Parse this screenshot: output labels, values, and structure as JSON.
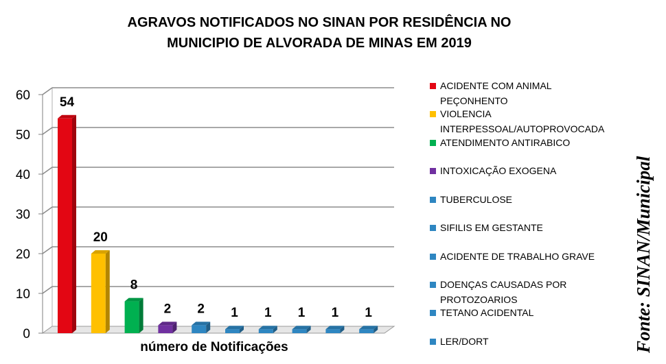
{
  "title_line1": "AGRAVOS NOTIFICADOS NO SINAN POR  RESIDÊNCIA  NO",
  "title_line2": "MUNICIPIO DE ALVORADA DE MINAS EM 2019",
  "source": "Fonte: SINAN/Municipal",
  "chart_data": {
    "type": "bar",
    "title": "AGRAVOS NOTIFICADOS NO SINAN POR RESIDÊNCIA NO MUNICIPIO DE ALVORADA DE MINAS EM 2019",
    "xlabel": "número  de Notificações",
    "ylabel": "",
    "ylim": [
      0,
      60
    ],
    "yticks": [
      0,
      10,
      20,
      30,
      40,
      50,
      60
    ],
    "grid": true,
    "legend_position": "right",
    "series": [
      {
        "name": "ACIDENTE COM ANIMAL PEÇONHENTO",
        "value": 54,
        "label": "54",
        "color": "#e30613"
      },
      {
        "name": "VIOLENCIA INTERPESSOAL/AUTOPROVOCADA",
        "value": 20,
        "label": "20",
        "color": "#ffc000"
      },
      {
        "name": "ATENDIMENTO ANTIRABICO",
        "value": 8,
        "label": "8",
        "color": "#00b050"
      },
      {
        "name": "INTOXICAÇÃO EXOGENA",
        "value": 2,
        "label": "2",
        "color": "#7030a0"
      },
      {
        "name": "TUBERCULOSE",
        "value": 2,
        "label": "2",
        "color": "#2e86c1"
      },
      {
        "name": "SIFILIS EM GESTANTE",
        "value": 1,
        "label": "1",
        "color": "#2e86c1"
      },
      {
        "name": "ACIDENTE DE TRABALHO GRAVE",
        "value": 1,
        "label": "1",
        "color": "#2e86c1"
      },
      {
        "name": "DOENÇAS CAUSADAS POR PROTOZOARIOS",
        "value": 1,
        "label": "1",
        "color": "#2e86c1"
      },
      {
        "name": "TETANO ACIDENTAL",
        "value": 1,
        "label": "1",
        "color": "#2e86c1"
      },
      {
        "name": "LER/DORT",
        "value": 1,
        "label": "1",
        "color": "#2e86c1"
      }
    ]
  },
  "legend": [
    {
      "label": "ACIDENTE COM ANIMAL\nPEÇONHENTO",
      "color": "#e30613"
    },
    {
      "label": "VIOLENCIA\nINTERPESSOAL/AUTOPROVOCADA",
      "color": "#ffc000"
    },
    {
      "label": "ATENDIMENTO ANTIRABICO",
      "color": "#00b050"
    },
    {
      "label": "INTOXICAÇÃO EXOGENA",
      "color": "#7030a0"
    },
    {
      "label": "TUBERCULOSE",
      "color": "#2e86c1"
    },
    {
      "label": "SIFILIS EM GESTANTE",
      "color": "#2e86c1"
    },
    {
      "label": "ACIDENTE DE TRABALHO GRAVE",
      "color": "#2e86c1"
    },
    {
      "label": "DOENÇAS CAUSADAS POR\nPROTOZOARIOS",
      "color": "#2e86c1"
    },
    {
      "label": "TETANO ACIDENTAL",
      "color": "#2e86c1"
    },
    {
      "label": "LER/DORT",
      "color": "#2e86c1"
    }
  ]
}
